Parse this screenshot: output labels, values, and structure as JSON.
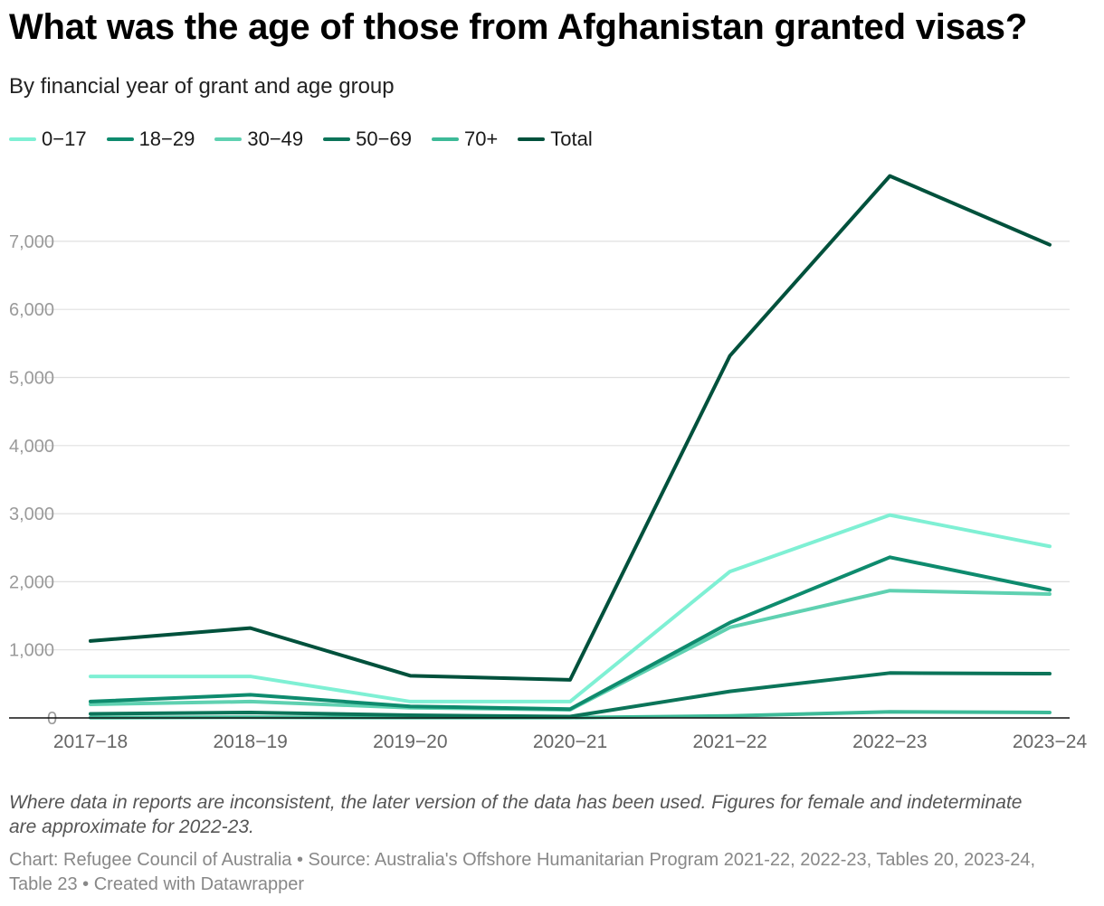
{
  "title": "What was the age of those from Afghanistan granted visas?",
  "subtitle": "By financial year of grant and age group",
  "notes": "Where data in reports are inconsistent, the later version of the data has been used. Figures for female and indeterminate are approximate for 2022-23.",
  "source": "Chart: Refugee Council of Australia • Source: Australia's Offshore Humanitarian Program 2021-22, 2022-23, Tables 20, 2023-24, Table 23 • Created with Datawrapper",
  "legend": [
    {
      "label": "0−17",
      "color": "#7ff0d4"
    },
    {
      "label": "18−29",
      "color": "#0e8b6e"
    },
    {
      "label": "30−49",
      "color": "#5fd1b1"
    },
    {
      "label": "50−69",
      "color": "#0b7459"
    },
    {
      "label": "70+",
      "color": "#3dba98"
    },
    {
      "label": "Total",
      "color": "#00513c"
    }
  ],
  "chart_data": {
    "type": "line",
    "title": "What was the age of those from Afghanistan granted visas?",
    "subtitle": "By financial year of grant and age group",
    "xlabel": "",
    "ylabel": "",
    "categories": [
      "2017−18",
      "2018−19",
      "2019−20",
      "2020−21",
      "2021−22",
      "2022−23",
      "2023−24"
    ],
    "yticks": [
      0,
      1000,
      2000,
      3000,
      4000,
      5000,
      6000,
      7000
    ],
    "ytick_labels": [
      "0",
      "1,000",
      "2,000",
      "3,000",
      "4,000",
      "5,000",
      "6,000",
      "7,000"
    ],
    "ylim": [
      0,
      8000
    ],
    "grid": true,
    "legend_position": "top-left",
    "series": [
      {
        "name": "0−17",
        "color": "#7ff0d4",
        "values": [
          610,
          610,
          240,
          240,
          2150,
          2980,
          2520
        ]
      },
      {
        "name": "30−49",
        "color": "#5fd1b1",
        "values": [
          200,
          240,
          150,
          120,
          1330,
          1870,
          1820
        ]
      },
      {
        "name": "18−29",
        "color": "#0e8b6e",
        "values": [
          240,
          340,
          170,
          130,
          1400,
          2360,
          1880
        ]
      },
      {
        "name": "70+",
        "color": "#3dba98",
        "values": [
          5,
          10,
          5,
          5,
          30,
          90,
          80
        ]
      },
      {
        "name": "50−69",
        "color": "#0b7459",
        "values": [
          60,
          80,
          40,
          20,
          390,
          660,
          650
        ]
      },
      {
        "name": "Total",
        "color": "#00513c",
        "values": [
          1130,
          1320,
          620,
          560,
          5320,
          7960,
          6950
        ]
      }
    ]
  }
}
